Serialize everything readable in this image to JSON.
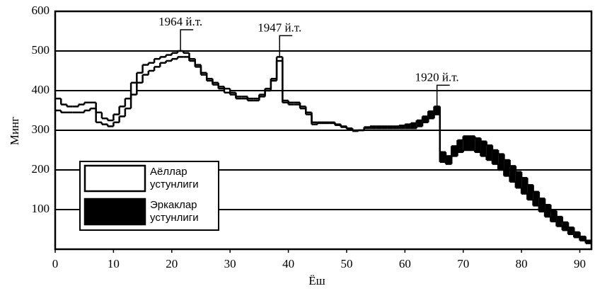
{
  "chart_data": {
    "type": "step",
    "xlabel": "Ёш",
    "ylabel": "Минг",
    "x": [
      0,
      1,
      2,
      3,
      4,
      5,
      6,
      7,
      8,
      9,
      10,
      11,
      12,
      13,
      14,
      15,
      16,
      17,
      18,
      19,
      20,
      21,
      22,
      23,
      24,
      25,
      26,
      27,
      28,
      29,
      30,
      31,
      32,
      33,
      34,
      35,
      36,
      37,
      38,
      39,
      40,
      41,
      42,
      43,
      44,
      45,
      46,
      47,
      48,
      49,
      50,
      51,
      52,
      53,
      54,
      55,
      56,
      57,
      58,
      59,
      60,
      61,
      62,
      63,
      64,
      65,
      66,
      67,
      68,
      69,
      70,
      71,
      72,
      73,
      74,
      75,
      76,
      77,
      78,
      79,
      80,
      81,
      82,
      83,
      84,
      85,
      86,
      87,
      88,
      89,
      90,
      91
    ],
    "series": [
      {
        "name": "Аёллар устунлиги",
        "color": "#ffffff",
        "values": [
          380,
          365,
          360,
          360,
          365,
          370,
          370,
          345,
          330,
          325,
          340,
          360,
          380,
          420,
          445,
          465,
          470,
          480,
          485,
          490,
          495,
          500,
          495,
          480,
          465,
          445,
          430,
          420,
          410,
          405,
          395,
          385,
          385,
          380,
          380,
          390,
          405,
          430,
          485,
          375,
          370,
          370,
          360,
          345,
          320,
          320,
          320,
          320,
          315,
          310,
          305,
          300,
          300,
          305,
          305,
          305,
          305,
          305,
          305,
          305,
          305,
          305,
          310,
          320,
          330,
          340,
          220,
          215,
          235,
          245,
          250,
          250,
          245,
          235,
          225,
          215,
          200,
          185,
          170,
          155,
          140,
          125,
          110,
          95,
          82,
          70,
          58,
          48,
          38,
          30,
          22,
          15
        ]
      },
      {
        "name": "Эркаклар устунлиги",
        "color": "#000000",
        "values": [
          350,
          345,
          345,
          345,
          345,
          350,
          355,
          320,
          315,
          310,
          320,
          335,
          355,
          390,
          420,
          440,
          450,
          460,
          470,
          475,
          480,
          485,
          485,
          475,
          460,
          440,
          425,
          415,
          405,
          395,
          390,
          380,
          380,
          375,
          375,
          385,
          400,
          425,
          475,
          370,
          365,
          365,
          355,
          340,
          315,
          318,
          318,
          318,
          313,
          308,
          303,
          298,
          300,
          308,
          310,
          310,
          310,
          310,
          310,
          312,
          315,
          318,
          325,
          335,
          348,
          360,
          245,
          235,
          260,
          275,
          285,
          285,
          280,
          272,
          262,
          250,
          240,
          225,
          210,
          195,
          180,
          162,
          145,
          128,
          112,
          97,
          82,
          68,
          55,
          43,
          32,
          22
        ]
      }
    ],
    "xlim": [
      0,
      92
    ],
    "xticks": [
      0,
      10,
      20,
      30,
      40,
      50,
      60,
      70,
      80,
      90
    ],
    "ylim": [
      0,
      600
    ],
    "yticks": [
      100,
      200,
      300,
      400,
      500,
      600
    ],
    "grid": true,
    "annotations": [
      {
        "text": "1964 й.т.",
        "x": 21
      },
      {
        "text": "1947 й.т.",
        "x": 38
      },
      {
        "text": "1920 й.т.",
        "x": 65
      }
    ]
  }
}
